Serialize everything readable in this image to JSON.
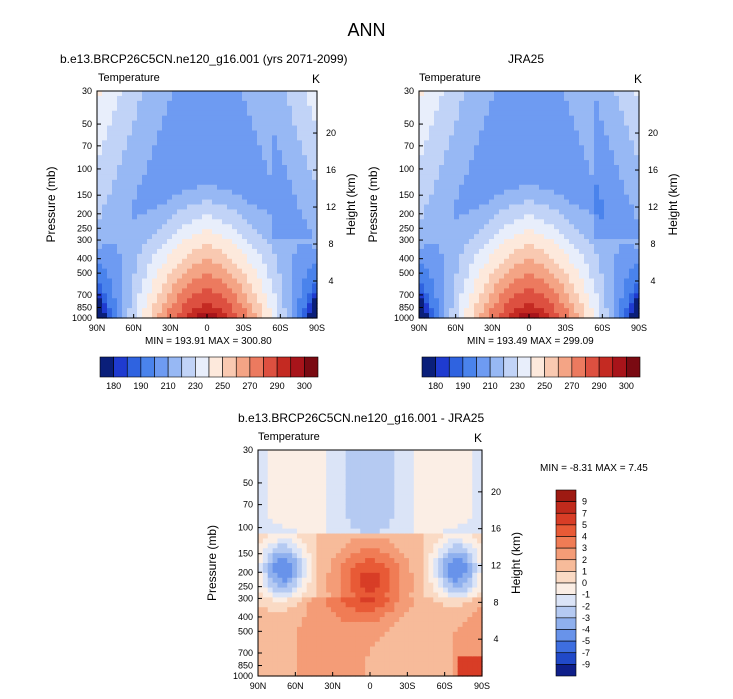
{
  "page": {
    "title": "ANN"
  },
  "chart_data": [
    {
      "type": "heatmap",
      "panel": "top-left",
      "title": "b.e13.BRCP26C5CN.ne120_g16.001 (yrs 2071-2099)",
      "variable": "Temperature",
      "units": "K",
      "xlabel": "",
      "ylabel": "Pressure (mb)",
      "right_label": "Height (km)",
      "x_ticks": [
        "90N",
        "60N",
        "30N",
        "0",
        "30S",
        "60S",
        "90S"
      ],
      "y_ticks": [
        30,
        50,
        70,
        100,
        150,
        200,
        250,
        300,
        400,
        500,
        700,
        850,
        1000
      ],
      "right_ticks": [
        20,
        16,
        12,
        8,
        4
      ],
      "y_log": true,
      "ylim": [
        1000,
        30
      ],
      "min": "193.91",
      "max": "300.80",
      "min_max_text": "MIN = 193.91   MAX = 300.80",
      "colorbar_levels": [
        180,
        190,
        210,
        230,
        250,
        270,
        290,
        300
      ],
      "colorbar_colors": [
        "#0a1f7a",
        "#1f3bd0",
        "#2f63e0",
        "#4a83ec",
        "#6e9bf2",
        "#97b8f4",
        "#c1d3f7",
        "#e8eefb",
        "#fde9dc",
        "#f9c9b1",
        "#f4a485",
        "#ec7a5f",
        "#dd5040",
        "#c42a22",
        "#a8141a",
        "#7a0a12"
      ],
      "colorbar_labels": [
        "180",
        "190",
        "210",
        "230",
        "250",
        "270",
        "290",
        "300"
      ]
    },
    {
      "type": "heatmap",
      "panel": "top-right",
      "title": "JRA25",
      "variable": "Temperature",
      "units": "K",
      "xlabel": "",
      "ylabel": "Pressure (mb)",
      "right_label": "Height (km)",
      "x_ticks": [
        "90N",
        "60N",
        "30N",
        "0",
        "30S",
        "60S",
        "90S"
      ],
      "y_ticks": [
        30,
        50,
        70,
        100,
        150,
        200,
        250,
        300,
        400,
        500,
        700,
        850,
        1000
      ],
      "right_ticks": [
        20,
        16,
        12,
        8,
        4
      ],
      "y_log": true,
      "ylim": [
        1000,
        30
      ],
      "min": "193.49",
      "max": "299.09",
      "min_max_text": "MIN = 193.49   MAX = 299.09",
      "colorbar_levels": [
        180,
        190,
        210,
        230,
        250,
        270,
        290,
        300
      ],
      "colorbar_colors": [
        "#0a1f7a",
        "#1f3bd0",
        "#2f63e0",
        "#4a83ec",
        "#6e9bf2",
        "#97b8f4",
        "#c1d3f7",
        "#e8eefb",
        "#fde9dc",
        "#f9c9b1",
        "#f4a485",
        "#ec7a5f",
        "#dd5040",
        "#c42a22",
        "#a8141a",
        "#7a0a12"
      ],
      "colorbar_labels": [
        "180",
        "190",
        "210",
        "230",
        "250",
        "270",
        "290",
        "300"
      ]
    },
    {
      "type": "heatmap",
      "panel": "bottom",
      "title": "b.e13.BRCP26C5CN.ne120_g16.001 - JRA25",
      "variable": "Temperature",
      "units": "K",
      "xlabel": "",
      "ylabel": "Pressure (mb)",
      "right_label": "Height (km)",
      "x_ticks": [
        "90N",
        "60N",
        "30N",
        "0",
        "30S",
        "60S",
        "90S"
      ],
      "y_ticks": [
        30,
        50,
        70,
        100,
        150,
        200,
        250,
        300,
        400,
        500,
        700,
        850,
        1000
      ],
      "right_ticks": [
        20,
        16,
        12,
        8,
        4
      ],
      "y_log": true,
      "ylim": [
        1000,
        30
      ],
      "min": "-8.31",
      "max": "7.45",
      "min_max_text": "MIN = -8.31   MAX =  7.45",
      "colorbar_levels": [
        9,
        7,
        5,
        4,
        3,
        2,
        1,
        0,
        -1,
        -2,
        -3,
        -4,
        -5,
        -7,
        -9
      ],
      "colorbar_colors": [
        "#9e1a12",
        "#c02a1c",
        "#d83d26",
        "#e85a36",
        "#f07c55",
        "#f49c77",
        "#f7bb9a",
        "#fadac4",
        "#fbeee5",
        "#dbe4f7",
        "#b5caf2",
        "#8fb0ee",
        "#6893ea",
        "#3e6ee0",
        "#2149c8",
        "#0f1f8a"
      ],
      "colorbar_labels": [
        "9",
        "7",
        "5",
        "4",
        "3",
        "2",
        "1",
        "0",
        "-1",
        "-2",
        "-3",
        "-4",
        "-5",
        "-7",
        "-9"
      ]
    }
  ]
}
